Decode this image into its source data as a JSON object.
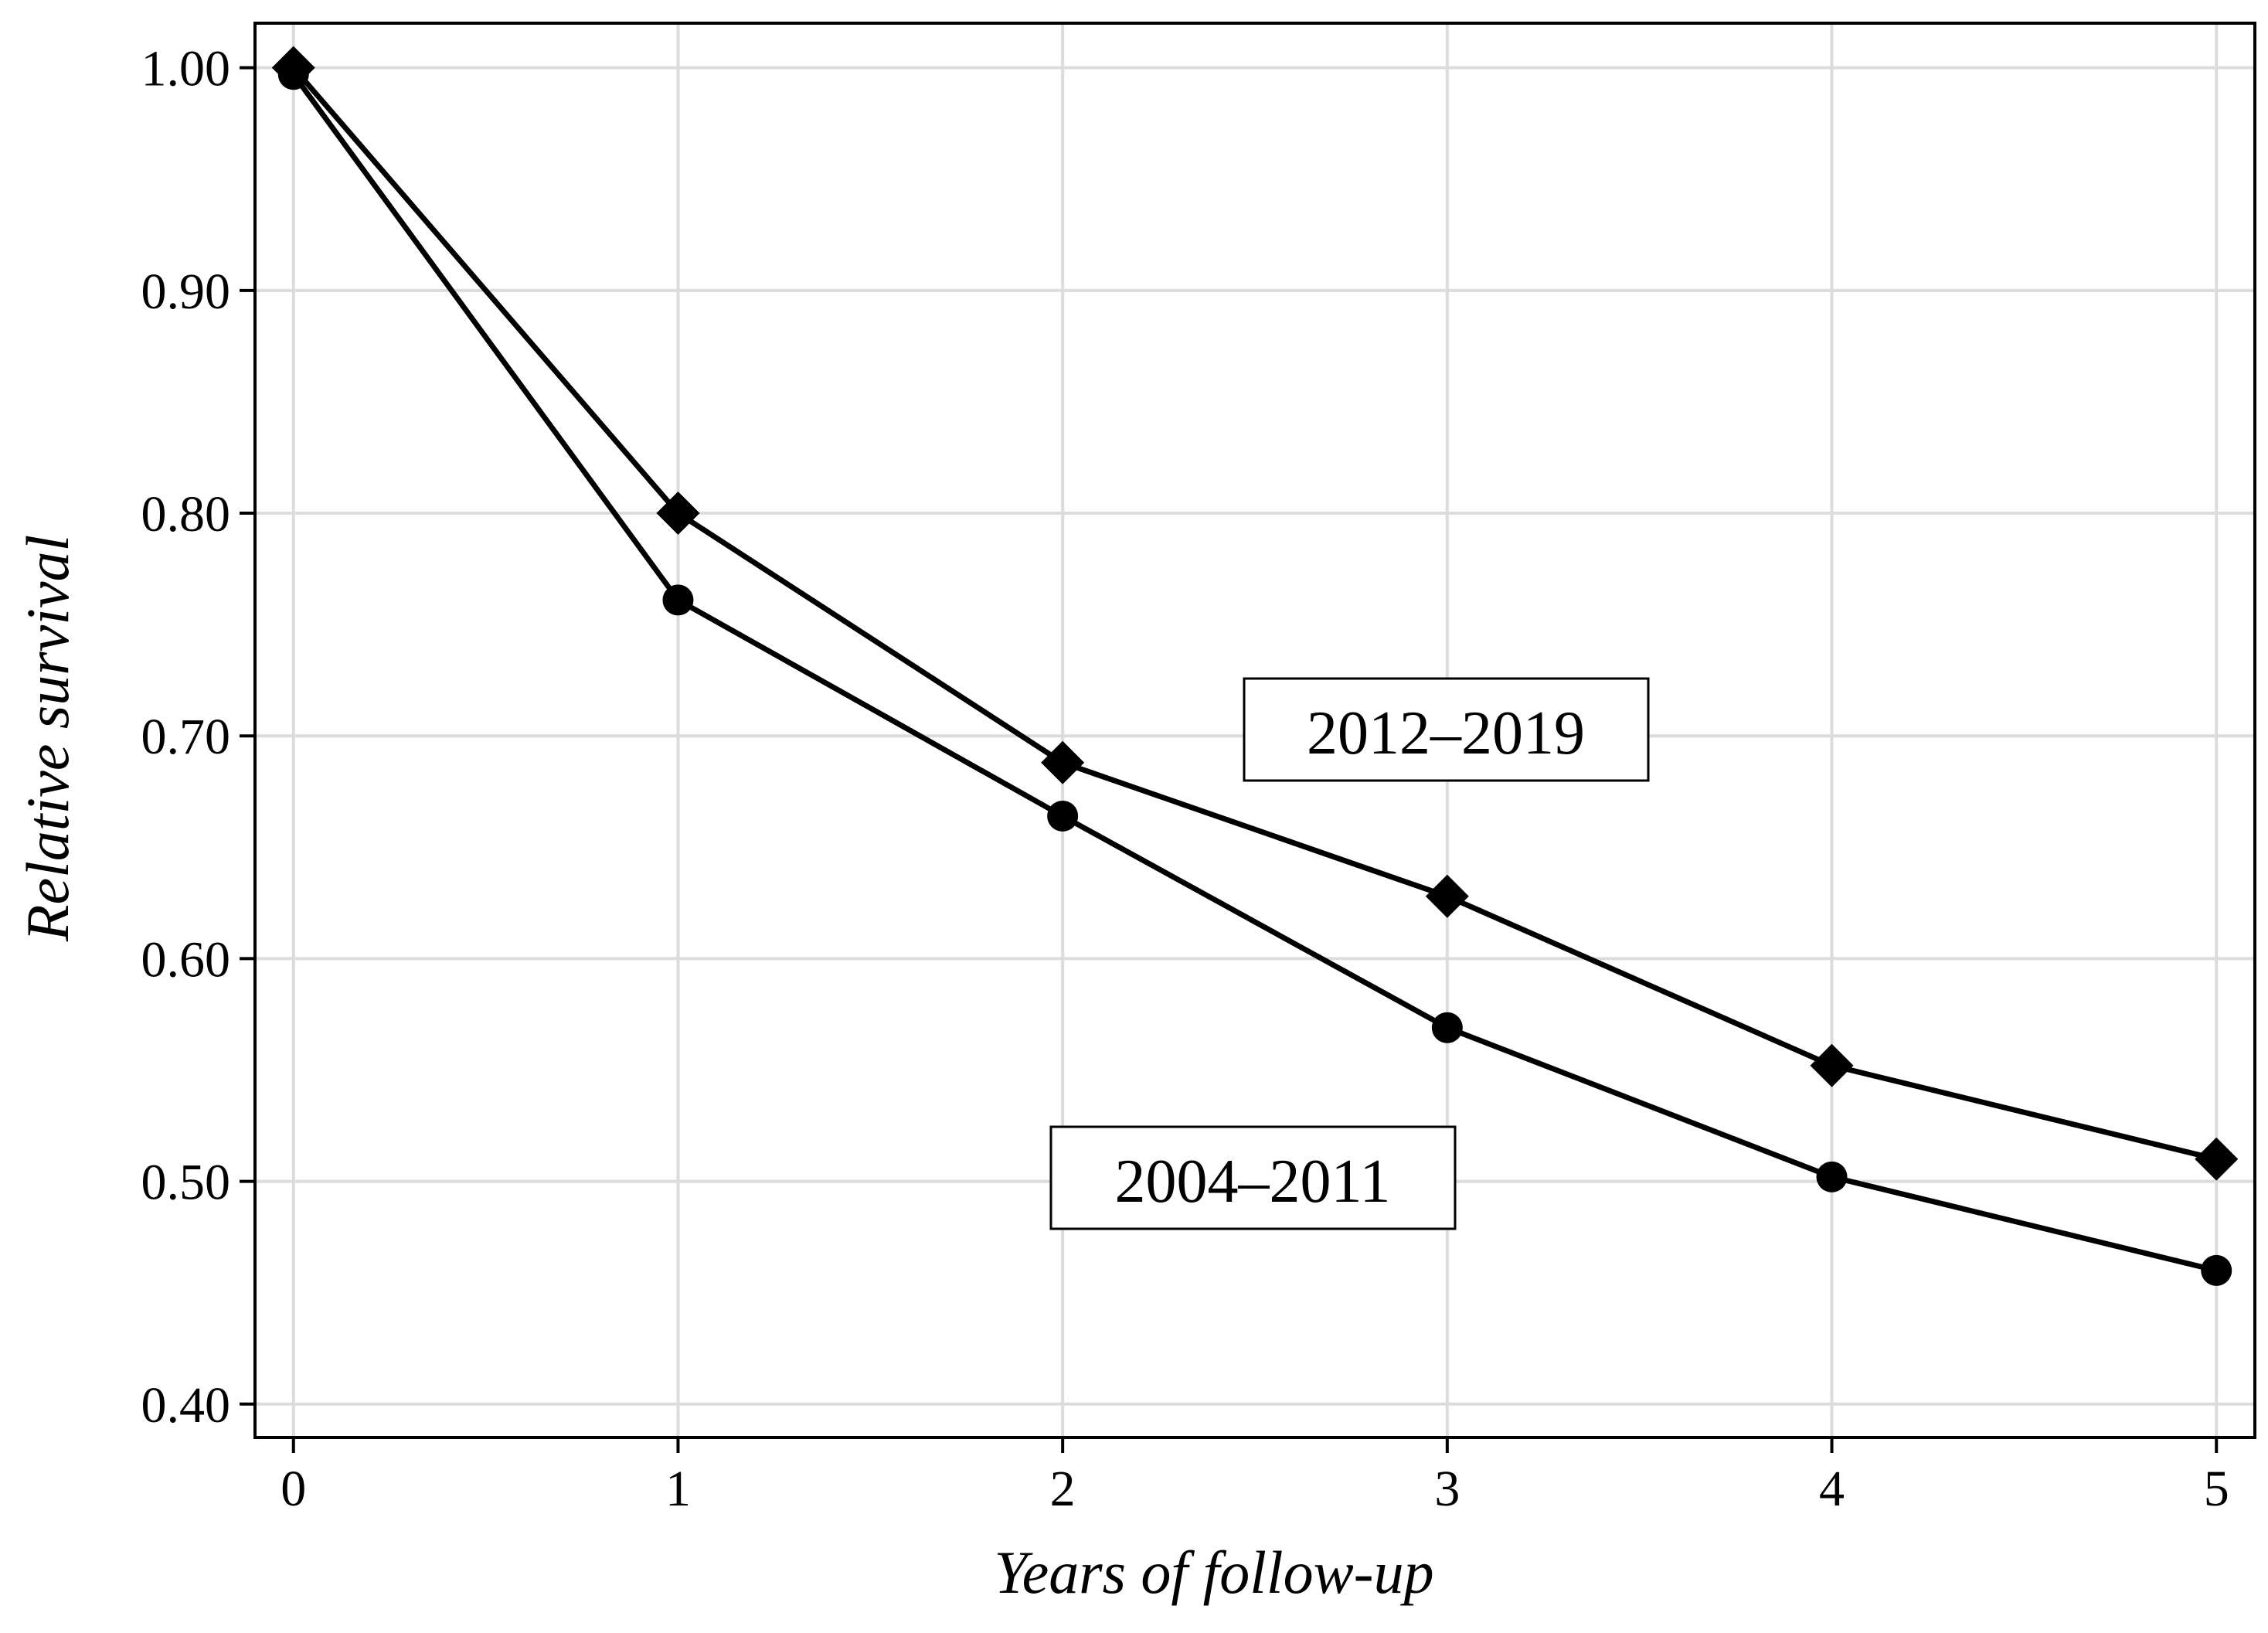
{
  "chart_data": {
    "type": "line",
    "xlabel": "Years of follow-up",
    "ylabel": "Relative survival",
    "x": [
      0,
      1,
      2,
      3,
      4,
      5
    ],
    "xlim": [
      -0.1,
      5.1
    ],
    "ylim": [
      0.385,
      1.02
    ],
    "xticks": [
      0,
      1,
      2,
      3,
      4,
      5
    ],
    "xtick_labels": [
      "0",
      "1",
      "2",
      "3",
      "4",
      "5"
    ],
    "yticks": [
      0.4,
      0.5,
      0.6,
      0.7,
      0.8,
      0.9,
      1.0
    ],
    "ytick_labels": [
      "0.40",
      "0.50",
      "0.60",
      "0.70",
      "0.80",
      "0.90",
      "1.00"
    ],
    "grid": true,
    "series": [
      {
        "name": "2012–2019",
        "marker": "diamond",
        "color": "#000000",
        "values": [
          1.0,
          0.8,
          0.688,
          0.628,
          0.552,
          0.51
        ]
      },
      {
        "name": "2004–2011",
        "marker": "circle",
        "color": "#000000",
        "values": [
          0.997,
          0.761,
          0.664,
          0.569,
          0.502,
          0.46
        ]
      }
    ]
  }
}
